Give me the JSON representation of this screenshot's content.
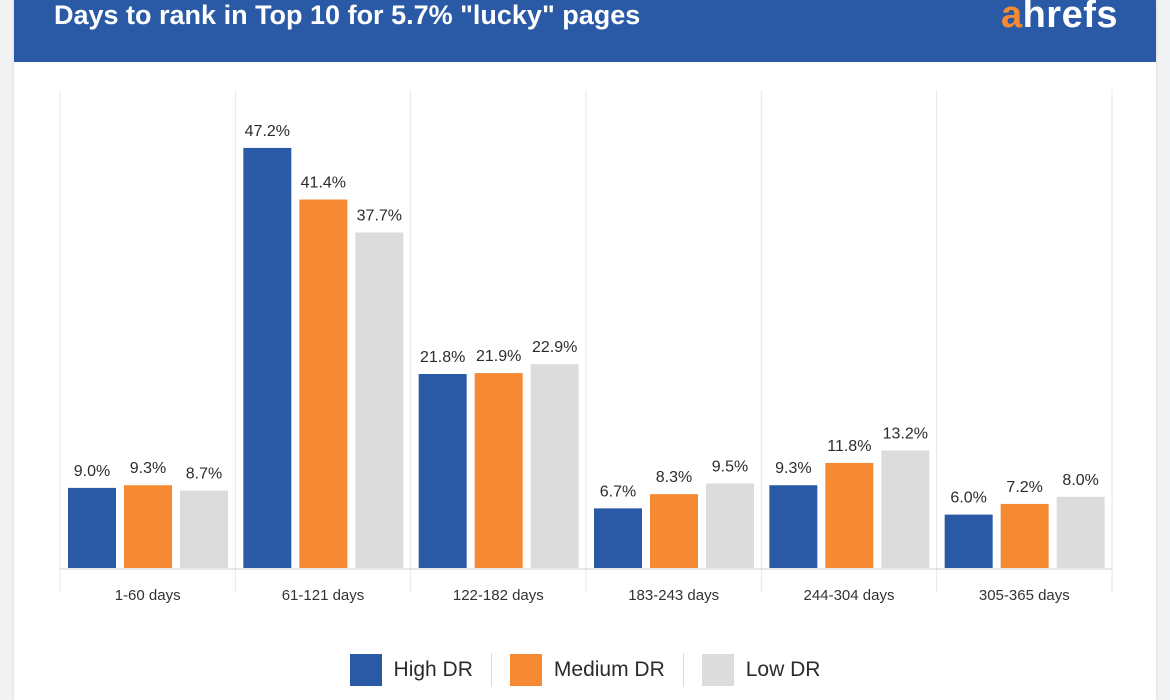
{
  "header": {
    "title": "Days to rank in Top 10 for 5.7% \"lucky\" pages",
    "logo_a": "a",
    "logo_rest": "hrefs"
  },
  "colors": {
    "High DR": "#2a5aa6",
    "Medium DR": "#f58a33",
    "Low DR": "#dcdcdc"
  },
  "chart_data": {
    "type": "bar",
    "title": "Days to rank in Top 10 for 5.7% \"lucky\" pages",
    "xlabel": "",
    "ylabel": "",
    "ylim": [
      0,
      52
    ],
    "grid": "vertical separators between categories",
    "legend_position": "bottom",
    "categories": [
      "1-60 days",
      "61-121 days",
      "122-182 days",
      "183-243 days",
      "244-304 days",
      "305-365 days"
    ],
    "series": [
      {
        "name": "High DR",
        "values": [
          9.0,
          47.2,
          21.8,
          6.7,
          9.3,
          6.0
        ],
        "labels": [
          "9.0%",
          "47.2%",
          "21.8%",
          "6.7%",
          "9.3%",
          "6.0%"
        ]
      },
      {
        "name": "Medium DR",
        "values": [
          9.3,
          41.4,
          21.9,
          8.3,
          11.8,
          7.2
        ],
        "labels": [
          "9.3%",
          "41.4%",
          "21.9%",
          "8.3%",
          "11.8%",
          "7.2%"
        ]
      },
      {
        "name": "Low DR",
        "values": [
          8.7,
          37.7,
          22.9,
          9.5,
          13.2,
          8.0
        ],
        "labels": [
          "8.7%",
          "37.7%",
          "22.9%",
          "9.5%",
          "13.2%",
          "8.0%"
        ]
      }
    ]
  }
}
